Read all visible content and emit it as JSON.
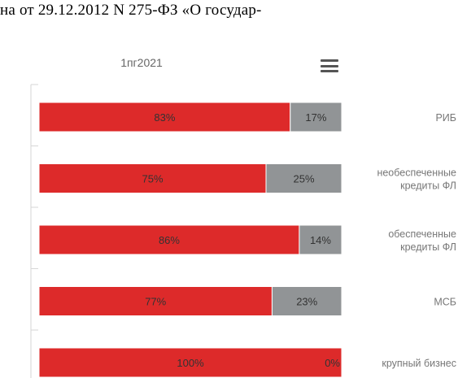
{
  "document": {
    "text_line": "на от 29.12.2012 N 275-ФЗ «О государ-"
  },
  "toolbar": {
    "menu_icon": "hamburger-menu-icon"
  },
  "colors": {
    "series_primary": "#dd2a2a",
    "series_secondary": "#919496",
    "axis": "#d6d6d6",
    "label_text": "#333333",
    "category_text": "#777777"
  },
  "chart_data": {
    "type": "bar",
    "orientation": "horizontal",
    "stacked": true,
    "percent_stacked": true,
    "title": "1пг2021",
    "categories": [
      [
        "РИБ"
      ],
      [
        "необеспеченные",
        "кредиты ФЛ"
      ],
      [
        "обеспеченные",
        "кредиты ФЛ"
      ],
      [
        "МСБ"
      ],
      [
        "крупный бизнес"
      ]
    ],
    "series": [
      {
        "values": [
          83,
          75,
          86,
          77,
          100
        ],
        "labels": [
          "83%",
          "75%",
          "86%",
          "77%",
          "100%"
        ]
      },
      {
        "values": [
          17,
          25,
          14,
          23,
          0
        ],
        "labels": [
          "17%",
          "25%",
          "14%",
          "23%",
          "0%"
        ]
      }
    ],
    "xlim": [
      0,
      100
    ],
    "category_axis_position": "right",
    "grid": false,
    "legend": "none"
  }
}
